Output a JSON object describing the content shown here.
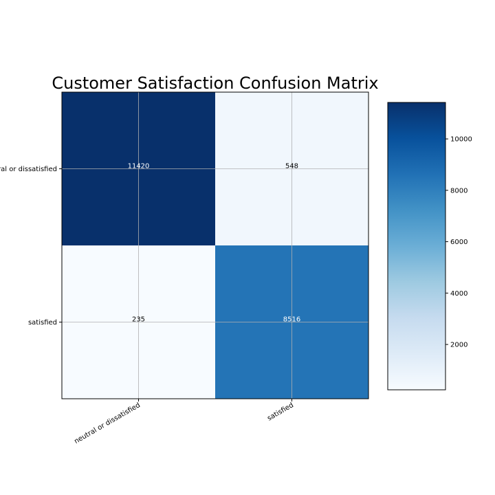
{
  "chart_data": {
    "type": "heatmap",
    "title": "Customer Satisfaction Confusion Matrix",
    "row_labels": [
      "neutral or dissatisfied",
      "satisfied"
    ],
    "col_labels": [
      "neutral or dissatisfied",
      "satisfied"
    ],
    "values": [
      [
        11420,
        548
      ],
      [
        235,
        8516
      ]
    ],
    "colormap": "Blues",
    "colorbar": {
      "range": [
        235,
        11420
      ],
      "ticks": [
        2000,
        4000,
        6000,
        8000,
        10000
      ]
    },
    "grid": true,
    "xtick_rotation_deg": 30
  }
}
